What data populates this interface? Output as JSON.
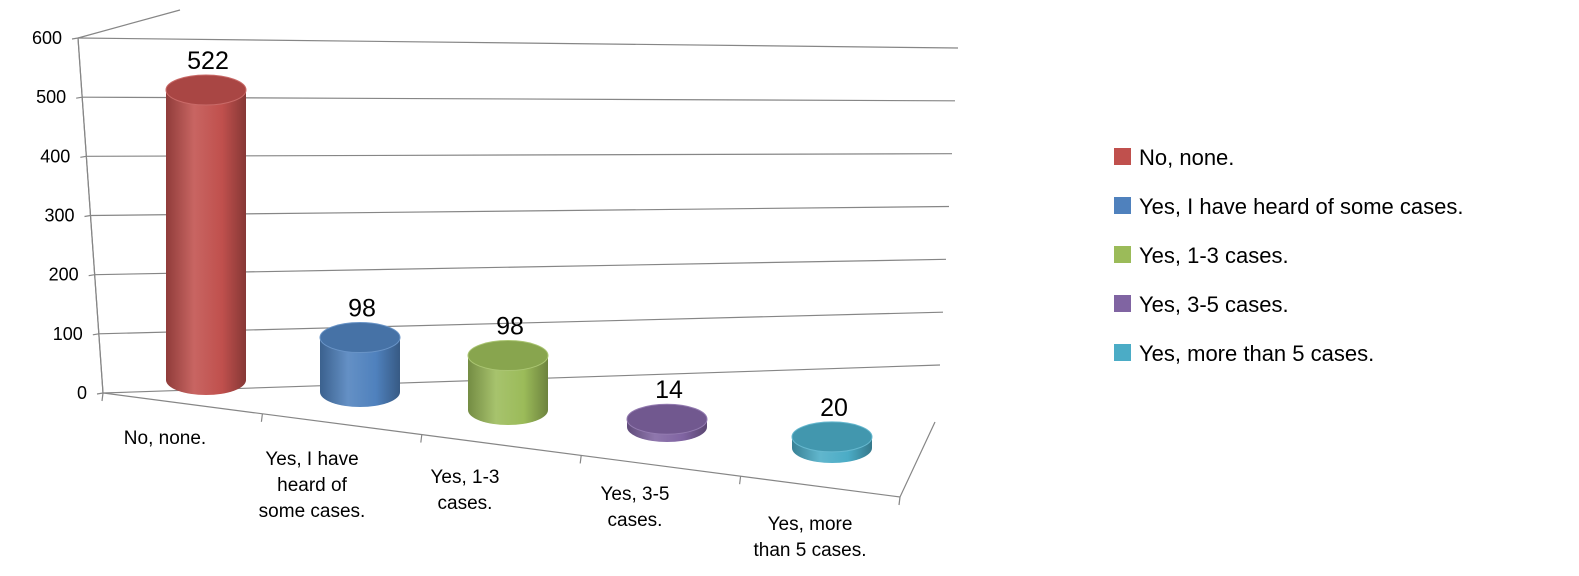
{
  "chart_data": {
    "type": "bar",
    "style": "3d-cylinder",
    "title": "",
    "xlabel": "",
    "ylabel": "",
    "ylim": [
      0,
      600
    ],
    "yticks": [
      0,
      100,
      200,
      300,
      400,
      500,
      600
    ],
    "grid": true,
    "legend_position": "right",
    "categories": [
      [
        "No, none."
      ],
      [
        "Yes, I have",
        "heard of",
        "some cases."
      ],
      [
        "Yes, 1-3",
        "cases."
      ],
      [
        "Yes, 3-5",
        "cases."
      ],
      [
        "Yes, more",
        "than 5 cases."
      ]
    ],
    "series": [
      {
        "name": "No, none.",
        "value": 522,
        "color": "#C0504D"
      },
      {
        "name": "Yes, I have heard of some cases.",
        "value": 98,
        "color": "#4F81BD"
      },
      {
        "name": "Yes, 1-3 cases.",
        "value": 98,
        "color": "#9BBB59"
      },
      {
        "name": "Yes, 3-5 cases.",
        "value": 14,
        "color": "#8064A2"
      },
      {
        "name": "Yes, more than 5 cases.",
        "value": 20,
        "color": "#4BACC6"
      }
    ],
    "values": [
      522,
      98,
      98,
      14,
      20
    ]
  }
}
